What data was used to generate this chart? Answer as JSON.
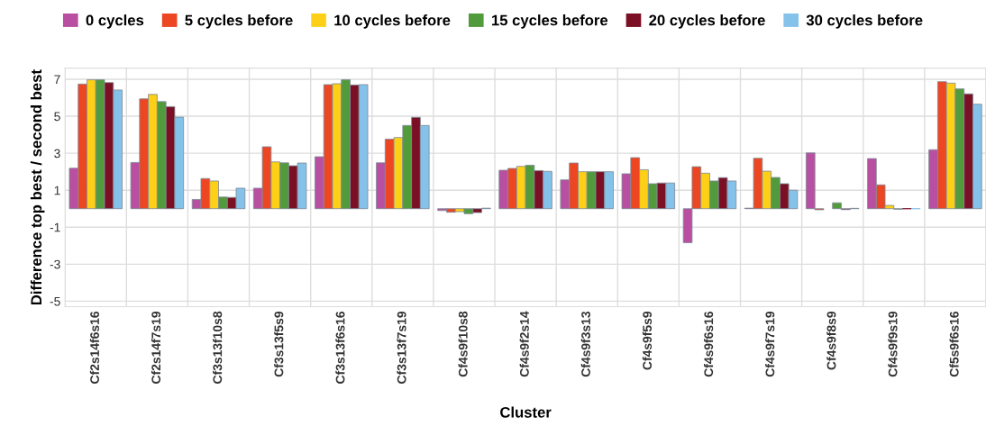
{
  "chart_data": {
    "type": "bar",
    "xlabel": "Cluster",
    "ylabel": "Difference top best / second best",
    "categories": [
      "Cf2s14f6s16",
      "Cf2s14f7s19",
      "Cf3s13f10s8",
      "Cf3s13f5s9",
      "Cf3s13f6s16",
      "Cf3s13f7s19",
      "Cf4s9f10s8",
      "Cf4s9f2s14",
      "Cf4s9f3s13",
      "Cf4s9f5s9",
      "Cf4s9f6s16",
      "Cf4s9f7s19",
      "Cf4s9f8s9",
      "Cf4s9f9s19",
      "Cf5s9f6s16"
    ],
    "series": [
      {
        "name": "0 cycles",
        "color": "#b94fa0",
        "values": [
          2.19,
          2.5,
          0.5,
          1.11,
          2.81,
          2.48,
          -0.1,
          2.08,
          1.56,
          1.89,
          -1.84,
          0.03,
          3.02,
          2.71,
          3.19
        ]
      },
      {
        "name": "5 cycles before",
        "color": "#ec4623",
        "values": [
          6.74,
          5.94,
          1.63,
          3.35,
          6.71,
          3.76,
          -0.19,
          2.18,
          2.47,
          2.76,
          2.27,
          2.73,
          -0.06,
          1.29,
          6.87
        ]
      },
      {
        "name": "10 cycles before",
        "color": "#fdd017",
        "values": [
          6.97,
          6.18,
          1.5,
          2.53,
          6.76,
          3.85,
          -0.16,
          2.29,
          2.0,
          2.11,
          1.92,
          2.03,
          null,
          0.18,
          6.79
        ]
      },
      {
        "name": "15 cycles before",
        "color": "#529b3d",
        "values": [
          6.97,
          5.79,
          0.63,
          2.48,
          6.97,
          4.5,
          -0.27,
          2.35,
          2.0,
          1.35,
          1.5,
          1.69,
          0.32,
          -0.03,
          6.48
        ]
      },
      {
        "name": "20 cycles before",
        "color": "#7b1025",
        "values": [
          6.82,
          5.52,
          0.61,
          2.32,
          6.69,
          4.94,
          -0.21,
          2.06,
          2.0,
          1.39,
          1.68,
          1.35,
          -0.05,
          0.0,
          6.21
        ]
      },
      {
        "name": "30 cycles before",
        "color": "#85c2ea",
        "values": [
          6.42,
          4.95,
          1.11,
          2.47,
          6.71,
          4.5,
          0.03,
          2.02,
          2.0,
          1.39,
          1.5,
          1.0,
          0.02,
          0.0,
          5.65
        ]
      }
    ],
    "ylim": [
      -5.3,
      7.6
    ],
    "yticks": [
      -5,
      -3,
      -1,
      1,
      3,
      5,
      7
    ],
    "grid": true,
    "legend": "top"
  }
}
